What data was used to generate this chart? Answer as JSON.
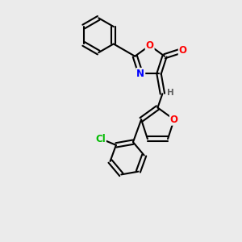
{
  "background_color": "#ebebeb",
  "bond_color": "#000000",
  "atom_colors": {
    "O": "#ff0000",
    "N": "#0000ff",
    "Cl": "#00bb00",
    "H": "#606060",
    "C": "#000000"
  },
  "font_size": 8.5,
  "figsize": [
    3.0,
    3.0
  ],
  "dpi": 100
}
